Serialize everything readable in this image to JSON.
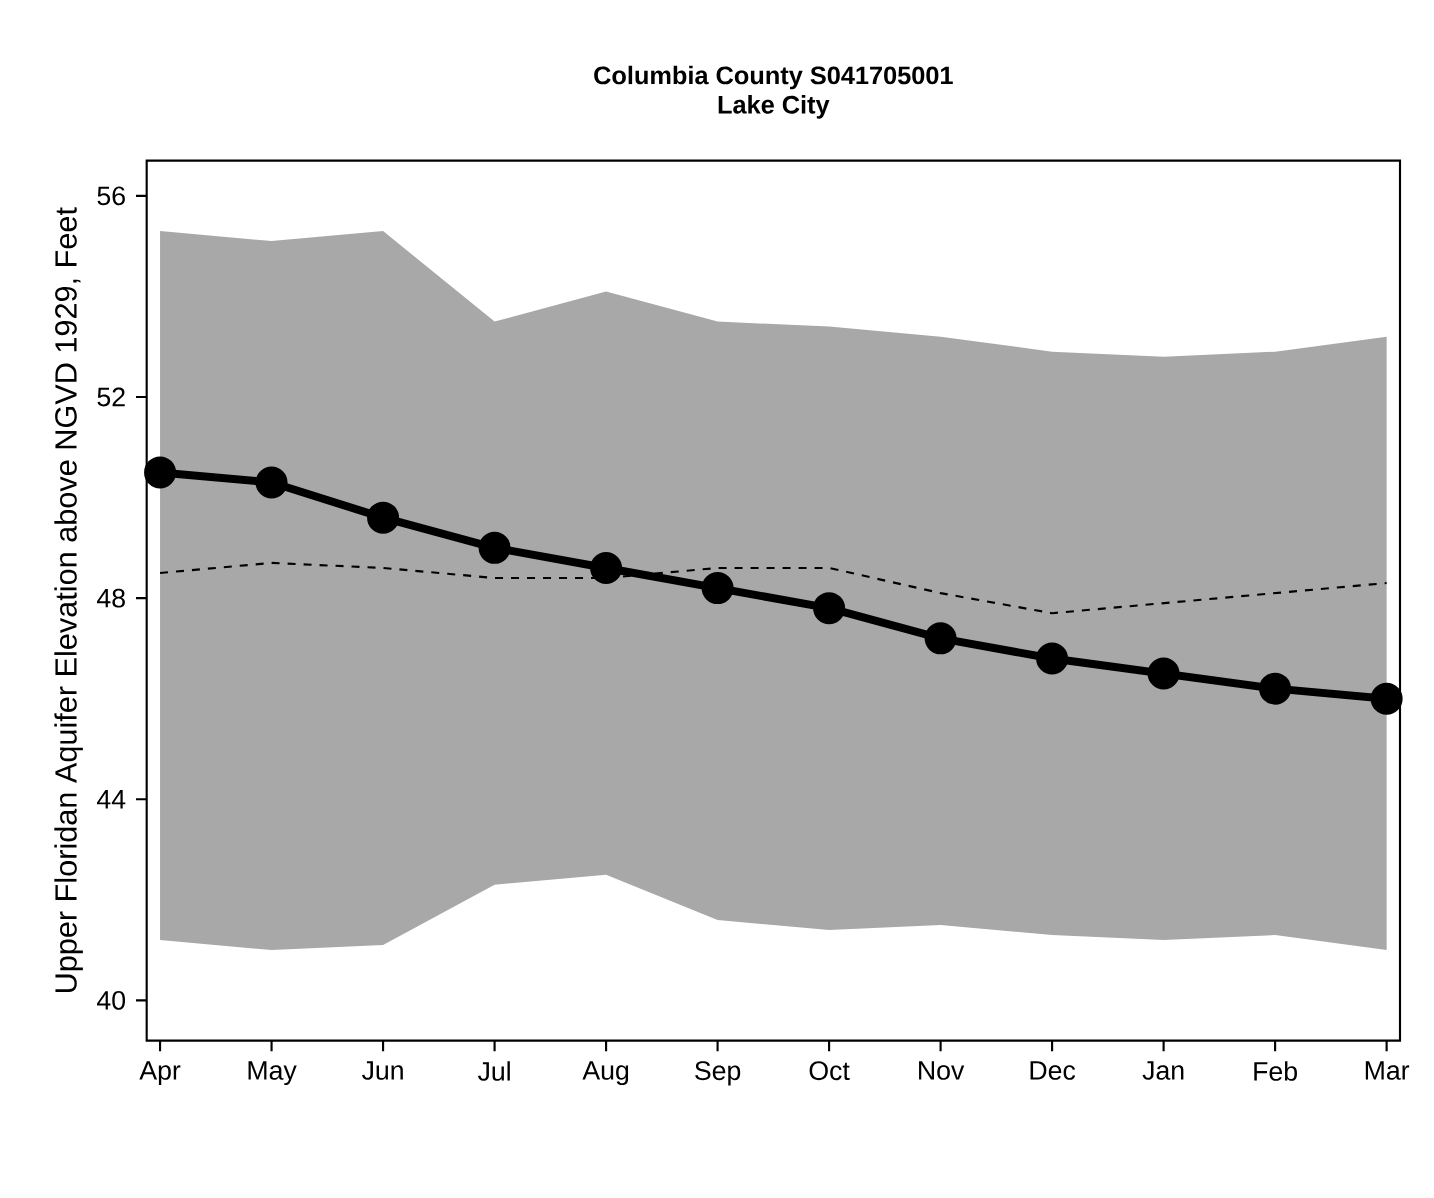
{
  "chart_data": {
    "type": "line",
    "title": "Columbia County S041705001",
    "subtitle": "Lake City",
    "ylabel": "Upper Floridan Aquifer Elevation above NGVD 1929, Feet",
    "categories": [
      "Apr",
      "May",
      "Jun",
      "Jul",
      "Aug",
      "Sep",
      "Oct",
      "Nov",
      "Dec",
      "Jan",
      "Feb",
      "Mar"
    ],
    "series": [
      {
        "color": "#000000",
        "marker": "circle",
        "line_style": "solid",
        "values": [
          50.5,
          50.3,
          49.6,
          49.0,
          48.6,
          48.2,
          47.8,
          47.2,
          46.8,
          46.5,
          46.2,
          46.0
        ]
      },
      {
        "color": "#000000",
        "marker": "none",
        "line_style": "dashed",
        "values": [
          48.5,
          48.7,
          48.6,
          48.4,
          48.4,
          48.6,
          48.6,
          48.1,
          47.7,
          47.9,
          48.1,
          48.3
        ],
        "lower": [
          41.2,
          41.0,
          41.1,
          42.3,
          42.5,
          41.6,
          41.4,
          41.5,
          41.3,
          41.2,
          41.3,
          41.0
        ],
        "upper": [
          55.3,
          55.1,
          55.3,
          53.5,
          54.1,
          53.5,
          53.4,
          53.2,
          52.9,
          52.8,
          52.9,
          53.2
        ]
      }
    ],
    "ylim": [
      39.2,
      56.7
    ],
    "yticks": [
      40,
      44,
      48,
      52,
      56
    ],
    "grid": false
  }
}
